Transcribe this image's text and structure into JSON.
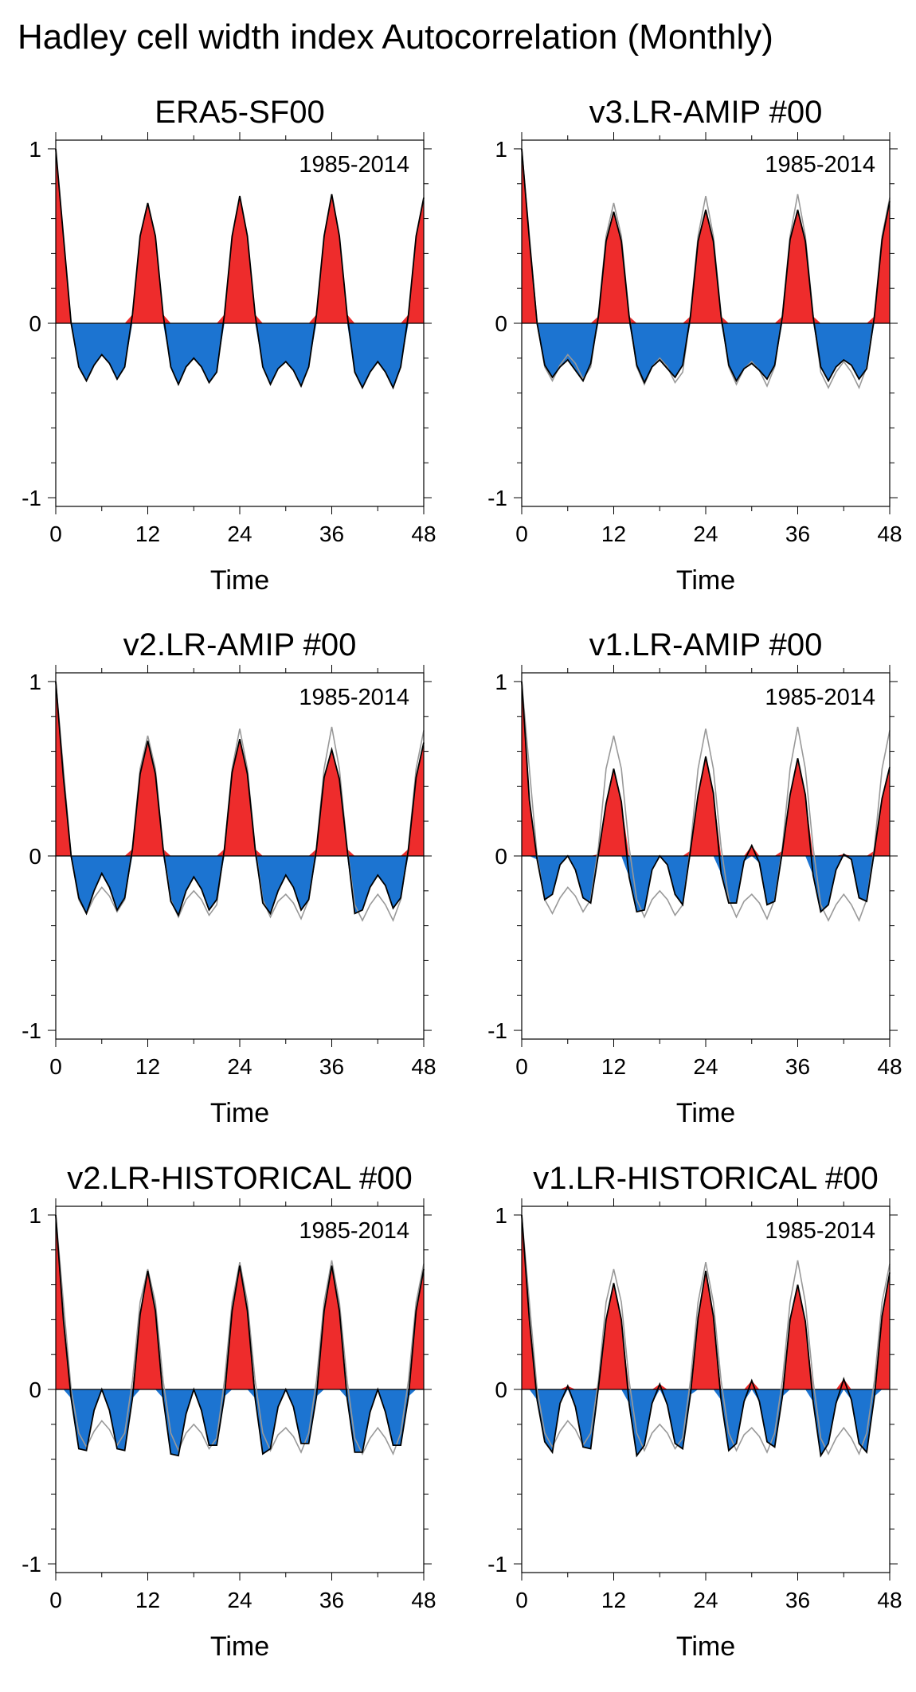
{
  "title": "Hadley cell width index Autocorrelation (Monthly)",
  "colors": {
    "positive": "#ee2c2c",
    "negative": "#1c74d1",
    "model_line": "#000000",
    "reference_line": "#999999"
  },
  "chart_data": [
    {
      "type": "area",
      "title": "ERA5-SF00",
      "period_label": "1985-2014",
      "xlabel": "Time",
      "ylabel": "",
      "x": [
        0,
        1,
        2,
        3,
        4,
        5,
        6,
        7,
        8,
        9,
        10,
        11,
        12,
        13,
        14,
        15,
        16,
        17,
        18,
        19,
        20,
        21,
        22,
        23,
        24,
        25,
        26,
        27,
        28,
        29,
        30,
        31,
        32,
        33,
        34,
        35,
        36,
        37,
        38,
        39,
        40,
        41,
        42,
        43,
        44,
        45,
        46,
        47,
        48
      ],
      "xlim": [
        0,
        48
      ],
      "ylim": [
        -1.05,
        1.05
      ],
      "xticks": [
        0,
        12,
        24,
        36,
        48
      ],
      "xtick_labels": [
        "0",
        "12",
        "24",
        "36",
        "48"
      ],
      "yticks": [
        -1,
        0,
        1
      ],
      "ytick_labels": [
        "-1",
        "0",
        "1"
      ],
      "series": [
        {
          "name": "ERA5-SF00",
          "role": "model",
          "values": [
            1.0,
            0.5,
            0.0,
            -0.25,
            -0.33,
            -0.24,
            -0.18,
            -0.23,
            -0.32,
            -0.25,
            0.05,
            0.5,
            0.69,
            0.5,
            0.05,
            -0.25,
            -0.35,
            -0.25,
            -0.2,
            -0.25,
            -0.34,
            -0.28,
            0.05,
            0.5,
            0.73,
            0.5,
            0.05,
            -0.25,
            -0.35,
            -0.26,
            -0.22,
            -0.27,
            -0.36,
            -0.25,
            0.05,
            0.5,
            0.74,
            0.5,
            0.05,
            -0.28,
            -0.37,
            -0.28,
            -0.22,
            -0.28,
            -0.37,
            -0.25,
            0.05,
            0.5,
            0.72
          ]
        }
      ]
    },
    {
      "type": "area",
      "title": "v3.LR-AMIP  #00",
      "period_label": "1985-2014",
      "xlabel": "Time",
      "ylabel": "",
      "x": [
        0,
        1,
        2,
        3,
        4,
        5,
        6,
        7,
        8,
        9,
        10,
        11,
        12,
        13,
        14,
        15,
        16,
        17,
        18,
        19,
        20,
        21,
        22,
        23,
        24,
        25,
        26,
        27,
        28,
        29,
        30,
        31,
        32,
        33,
        34,
        35,
        36,
        37,
        38,
        39,
        40,
        41,
        42,
        43,
        44,
        45,
        46,
        47,
        48
      ],
      "xlim": [
        0,
        48
      ],
      "ylim": [
        -1.05,
        1.05
      ],
      "xticks": [
        0,
        12,
        24,
        36,
        48
      ],
      "xtick_labels": [
        "0",
        "12",
        "24",
        "36",
        "48"
      ],
      "yticks": [
        -1,
        0,
        1
      ],
      "ytick_labels": [
        "-1",
        "0",
        "1"
      ],
      "series": [
        {
          "name": "v3.LR-AMIP",
          "role": "model",
          "values": [
            1.0,
            0.48,
            0.0,
            -0.24,
            -0.31,
            -0.25,
            -0.21,
            -0.27,
            -0.33,
            -0.23,
            0.04,
            0.47,
            0.64,
            0.47,
            0.04,
            -0.24,
            -0.34,
            -0.25,
            -0.21,
            -0.26,
            -0.31,
            -0.24,
            0.04,
            0.47,
            0.65,
            0.47,
            0.04,
            -0.24,
            -0.33,
            -0.26,
            -0.23,
            -0.27,
            -0.32,
            -0.24,
            0.04,
            0.48,
            0.65,
            0.47,
            0.04,
            -0.25,
            -0.33,
            -0.25,
            -0.21,
            -0.24,
            -0.32,
            -0.26,
            0.04,
            0.48,
            0.7
          ]
        },
        {
          "name": "ERA5-SF00",
          "role": "reference",
          "values": [
            1.0,
            0.5,
            0.0,
            -0.25,
            -0.33,
            -0.24,
            -0.18,
            -0.23,
            -0.32,
            -0.25,
            0.05,
            0.5,
            0.69,
            0.5,
            0.05,
            -0.25,
            -0.35,
            -0.25,
            -0.2,
            -0.25,
            -0.34,
            -0.28,
            0.05,
            0.5,
            0.73,
            0.5,
            0.05,
            -0.25,
            -0.35,
            -0.26,
            -0.22,
            -0.27,
            -0.36,
            -0.25,
            0.05,
            0.5,
            0.74,
            0.5,
            0.05,
            -0.28,
            -0.37,
            -0.28,
            -0.22,
            -0.28,
            -0.37,
            -0.25,
            0.05,
            0.5,
            0.72
          ]
        }
      ]
    },
    {
      "type": "area",
      "title": "v2.LR-AMIP  #00",
      "period_label": "1985-2014",
      "xlabel": "Time",
      "ylabel": "",
      "x": [
        0,
        1,
        2,
        3,
        4,
        5,
        6,
        7,
        8,
        9,
        10,
        11,
        12,
        13,
        14,
        15,
        16,
        17,
        18,
        19,
        20,
        21,
        22,
        23,
        24,
        25,
        26,
        27,
        28,
        29,
        30,
        31,
        32,
        33,
        34,
        35,
        36,
        37,
        38,
        39,
        40,
        41,
        42,
        43,
        44,
        45,
        46,
        47,
        48
      ],
      "xlim": [
        0,
        48
      ],
      "ylim": [
        -1.05,
        1.05
      ],
      "xticks": [
        0,
        12,
        24,
        36,
        48
      ],
      "xtick_labels": [
        "0",
        "12",
        "24",
        "36",
        "48"
      ],
      "yticks": [
        -1,
        0,
        1
      ],
      "ytick_labels": [
        "-1",
        "0",
        "1"
      ],
      "series": [
        {
          "name": "v2.LR-AMIP",
          "role": "model",
          "values": [
            1.0,
            0.45,
            0.0,
            -0.24,
            -0.33,
            -0.2,
            -0.1,
            -0.18,
            -0.31,
            -0.24,
            0.04,
            0.47,
            0.66,
            0.47,
            0.04,
            -0.26,
            -0.34,
            -0.2,
            -0.12,
            -0.19,
            -0.31,
            -0.25,
            0.04,
            0.48,
            0.67,
            0.47,
            0.04,
            -0.27,
            -0.33,
            -0.2,
            -0.11,
            -0.18,
            -0.31,
            -0.25,
            0.04,
            0.45,
            0.61,
            0.44,
            0.04,
            -0.33,
            -0.31,
            -0.18,
            -0.11,
            -0.17,
            -0.3,
            -0.24,
            0.04,
            0.45,
            0.65
          ]
        },
        {
          "name": "ERA5-SF00",
          "role": "reference",
          "values": [
            1.0,
            0.5,
            0.0,
            -0.25,
            -0.33,
            -0.24,
            -0.18,
            -0.23,
            -0.32,
            -0.25,
            0.05,
            0.5,
            0.69,
            0.5,
            0.05,
            -0.25,
            -0.35,
            -0.25,
            -0.2,
            -0.25,
            -0.34,
            -0.28,
            0.05,
            0.5,
            0.73,
            0.5,
            0.05,
            -0.25,
            -0.35,
            -0.26,
            -0.22,
            -0.27,
            -0.36,
            -0.25,
            0.05,
            0.5,
            0.74,
            0.5,
            0.05,
            -0.28,
            -0.37,
            -0.28,
            -0.22,
            -0.28,
            -0.37,
            -0.25,
            0.05,
            0.5,
            0.72
          ]
        }
      ]
    },
    {
      "type": "area",
      "title": "v1.LR-AMIP  #00",
      "period_label": "1985-2014",
      "xlabel": "Time",
      "ylabel": "",
      "x": [
        0,
        1,
        2,
        3,
        4,
        5,
        6,
        7,
        8,
        9,
        10,
        11,
        12,
        13,
        14,
        15,
        16,
        17,
        18,
        19,
        20,
        21,
        22,
        23,
        24,
        25,
        26,
        27,
        28,
        29,
        30,
        31,
        32,
        33,
        34,
        35,
        36,
        37,
        38,
        39,
        40,
        41,
        42,
        43,
        44,
        45,
        46,
        47,
        48
      ],
      "xlim": [
        0,
        48
      ],
      "ylim": [
        -1.05,
        1.05
      ],
      "xticks": [
        0,
        12,
        24,
        36,
        48
      ],
      "xtick_labels": [
        "0",
        "12",
        "24",
        "36",
        "48"
      ],
      "yticks": [
        -1,
        0,
        1
      ],
      "ytick_labels": [
        "-1",
        "0",
        "1"
      ],
      "series": [
        {
          "name": "v1.LR-AMIP",
          "role": "model",
          "values": [
            1.0,
            0.32,
            -0.02,
            -0.25,
            -0.22,
            -0.05,
            0.0,
            -0.08,
            -0.24,
            -0.27,
            0.01,
            0.3,
            0.5,
            0.31,
            -0.12,
            -0.32,
            -0.31,
            -0.08,
            0.0,
            -0.05,
            -0.22,
            -0.28,
            0.03,
            0.35,
            0.57,
            0.36,
            -0.1,
            -0.27,
            -0.27,
            -0.03,
            0.06,
            -0.04,
            -0.28,
            -0.26,
            0.03,
            0.35,
            0.56,
            0.35,
            -0.11,
            -0.32,
            -0.28,
            -0.08,
            0.01,
            -0.02,
            -0.24,
            -0.26,
            0.03,
            0.33,
            0.51
          ]
        },
        {
          "name": "ERA5-SF00",
          "role": "reference",
          "values": [
            1.0,
            0.5,
            0.0,
            -0.25,
            -0.33,
            -0.24,
            -0.18,
            -0.23,
            -0.32,
            -0.25,
            0.05,
            0.5,
            0.69,
            0.5,
            0.05,
            -0.25,
            -0.35,
            -0.25,
            -0.2,
            -0.25,
            -0.34,
            -0.28,
            0.05,
            0.5,
            0.73,
            0.5,
            0.05,
            -0.25,
            -0.35,
            -0.26,
            -0.22,
            -0.27,
            -0.36,
            -0.25,
            0.05,
            0.5,
            0.74,
            0.5,
            0.05,
            -0.28,
            -0.37,
            -0.28,
            -0.22,
            -0.28,
            -0.37,
            -0.25,
            0.05,
            0.5,
            0.72
          ]
        }
      ]
    },
    {
      "type": "area",
      "title": "v2.LR-HISTORICAL  #00",
      "period_label": "1985-2014",
      "xlabel": "Time",
      "ylabel": "",
      "x": [
        0,
        1,
        2,
        3,
        4,
        5,
        6,
        7,
        8,
        9,
        10,
        11,
        12,
        13,
        14,
        15,
        16,
        17,
        18,
        19,
        20,
        21,
        22,
        23,
        24,
        25,
        26,
        27,
        28,
        29,
        30,
        31,
        32,
        33,
        34,
        35,
        36,
        37,
        38,
        39,
        40,
        41,
        42,
        43,
        44,
        45,
        46,
        47,
        48
      ],
      "xlim": [
        0,
        48
      ],
      "ylim": [
        -1.05,
        1.05
      ],
      "xticks": [
        0,
        12,
        24,
        36,
        48
      ],
      "xtick_labels": [
        "0",
        "12",
        "24",
        "36",
        "48"
      ],
      "yticks": [
        -1,
        0,
        1
      ],
      "ytick_labels": [
        "-1",
        "0",
        "1"
      ],
      "series": [
        {
          "name": "v2.LR-HISTORICAL",
          "role": "model",
          "values": [
            1.0,
            0.4,
            -0.05,
            -0.34,
            -0.35,
            -0.12,
            0.0,
            -0.12,
            -0.34,
            -0.35,
            -0.05,
            0.43,
            0.68,
            0.45,
            -0.05,
            -0.37,
            -0.38,
            -0.14,
            0.0,
            -0.12,
            -0.32,
            -0.32,
            -0.04,
            0.45,
            0.71,
            0.45,
            -0.05,
            -0.37,
            -0.34,
            -0.1,
            0.0,
            -0.1,
            -0.31,
            -0.31,
            -0.04,
            0.45,
            0.71,
            0.45,
            -0.05,
            -0.36,
            -0.36,
            -0.13,
            0.0,
            -0.13,
            -0.32,
            -0.32,
            -0.04,
            0.45,
            0.69
          ]
        },
        {
          "name": "ERA5-SF00",
          "role": "reference",
          "values": [
            1.0,
            0.5,
            0.0,
            -0.25,
            -0.33,
            -0.24,
            -0.18,
            -0.23,
            -0.32,
            -0.25,
            0.05,
            0.5,
            0.69,
            0.5,
            0.05,
            -0.25,
            -0.35,
            -0.25,
            -0.2,
            -0.25,
            -0.34,
            -0.28,
            0.05,
            0.5,
            0.73,
            0.5,
            0.05,
            -0.25,
            -0.35,
            -0.26,
            -0.22,
            -0.27,
            -0.36,
            -0.25,
            0.05,
            0.5,
            0.74,
            0.5,
            0.05,
            -0.28,
            -0.37,
            -0.28,
            -0.22,
            -0.28,
            -0.37,
            -0.25,
            0.05,
            0.5,
            0.72
          ]
        }
      ]
    },
    {
      "type": "area",
      "title": "v1.LR-HISTORICAL  #00",
      "period_label": "1985-2014",
      "xlabel": "Time",
      "ylabel": "",
      "x": [
        0,
        1,
        2,
        3,
        4,
        5,
        6,
        7,
        8,
        9,
        10,
        11,
        12,
        13,
        14,
        15,
        16,
        17,
        18,
        19,
        20,
        21,
        22,
        23,
        24,
        25,
        26,
        27,
        28,
        29,
        30,
        31,
        32,
        33,
        34,
        35,
        36,
        37,
        38,
        39,
        40,
        41,
        42,
        43,
        44,
        45,
        46,
        47,
        48
      ],
      "xlim": [
        0,
        48
      ],
      "ylim": [
        -1.05,
        1.05
      ],
      "xticks": [
        0,
        12,
        24,
        36,
        48
      ],
      "xtick_labels": [
        "0",
        "12",
        "24",
        "36",
        "48"
      ],
      "yticks": [
        -1,
        0,
        1
      ],
      "ytick_labels": [
        "-1",
        "0",
        "1"
      ],
      "series": [
        {
          "name": "v1.LR-HISTORICAL",
          "role": "model",
          "values": [
            1.0,
            0.4,
            -0.06,
            -0.3,
            -0.36,
            -0.08,
            0.02,
            -0.1,
            -0.33,
            -0.34,
            0.01,
            0.4,
            0.61,
            0.4,
            -0.08,
            -0.38,
            -0.32,
            -0.08,
            0.03,
            -0.09,
            -0.31,
            -0.34,
            -0.03,
            0.41,
            0.68,
            0.42,
            -0.06,
            -0.35,
            -0.31,
            -0.07,
            0.05,
            -0.07,
            -0.3,
            -0.33,
            -0.04,
            0.4,
            0.6,
            0.39,
            -0.07,
            -0.38,
            -0.31,
            -0.08,
            0.06,
            -0.06,
            -0.31,
            -0.36,
            -0.04,
            0.42,
            0.67
          ]
        },
        {
          "name": "ERA5-SF00",
          "role": "reference",
          "values": [
            1.0,
            0.5,
            0.0,
            -0.25,
            -0.33,
            -0.24,
            -0.18,
            -0.23,
            -0.32,
            -0.25,
            0.05,
            0.5,
            0.69,
            0.5,
            0.05,
            -0.25,
            -0.35,
            -0.25,
            -0.2,
            -0.25,
            -0.34,
            -0.28,
            0.05,
            0.5,
            0.73,
            0.5,
            0.05,
            -0.25,
            -0.35,
            -0.26,
            -0.22,
            -0.27,
            -0.36,
            -0.25,
            0.05,
            0.5,
            0.74,
            0.5,
            0.05,
            -0.28,
            -0.37,
            -0.28,
            -0.22,
            -0.28,
            -0.37,
            -0.25,
            0.05,
            0.5,
            0.72
          ]
        }
      ]
    }
  ]
}
